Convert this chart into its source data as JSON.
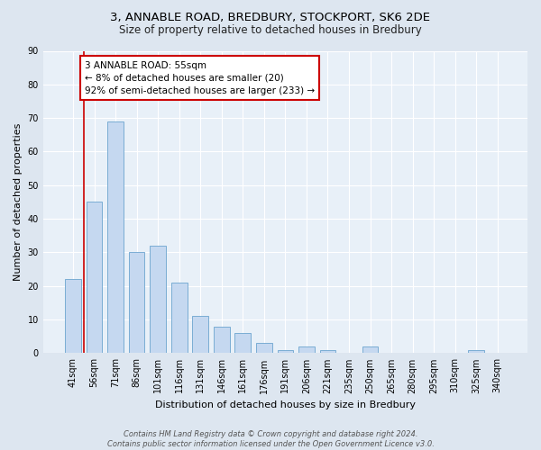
{
  "title1": "3, ANNABLE ROAD, BREDBURY, STOCKPORT, SK6 2DE",
  "title2": "Size of property relative to detached houses in Bredbury",
  "xlabel": "Distribution of detached houses by size in Bredbury",
  "ylabel": "Number of detached properties",
  "categories": [
    "41sqm",
    "56sqm",
    "71sqm",
    "86sqm",
    "101sqm",
    "116sqm",
    "131sqm",
    "146sqm",
    "161sqm",
    "176sqm",
    "191sqm",
    "206sqm",
    "221sqm",
    "235sqm",
    "250sqm",
    "265sqm",
    "280sqm",
    "295sqm",
    "310sqm",
    "325sqm",
    "340sqm"
  ],
  "values": [
    22,
    45,
    69,
    30,
    32,
    21,
    11,
    8,
    6,
    3,
    1,
    2,
    1,
    0,
    2,
    0,
    0,
    0,
    0,
    1,
    0
  ],
  "bar_color": "#c5d8f0",
  "bar_edge_color": "#7aadd4",
  "annotation_text_line1": "3 ANNABLE ROAD: 55sqm",
  "annotation_text_line2": "← 8% of detached houses are smaller (20)",
  "annotation_text_line3": "92% of semi-detached houses are larger (233) →",
  "annotation_box_color": "#ffffff",
  "annotation_box_edge_color": "#cc0000",
  "red_line_color": "#cc0000",
  "ylim": [
    0,
    90
  ],
  "yticks": [
    0,
    10,
    20,
    30,
    40,
    50,
    60,
    70,
    80,
    90
  ],
  "footnote": "Contains HM Land Registry data © Crown copyright and database right 2024.\nContains public sector information licensed under the Open Government Licence v3.0.",
  "bg_color": "#dde6f0",
  "plot_bg_color": "#e8f0f8",
  "grid_color": "#ffffff",
  "title1_fontsize": 9.5,
  "title2_fontsize": 8.5,
  "xlabel_fontsize": 8.0,
  "ylabel_fontsize": 8.0,
  "tick_fontsize": 7.0,
  "annot_fontsize": 7.5,
  "footnote_fontsize": 6.0
}
